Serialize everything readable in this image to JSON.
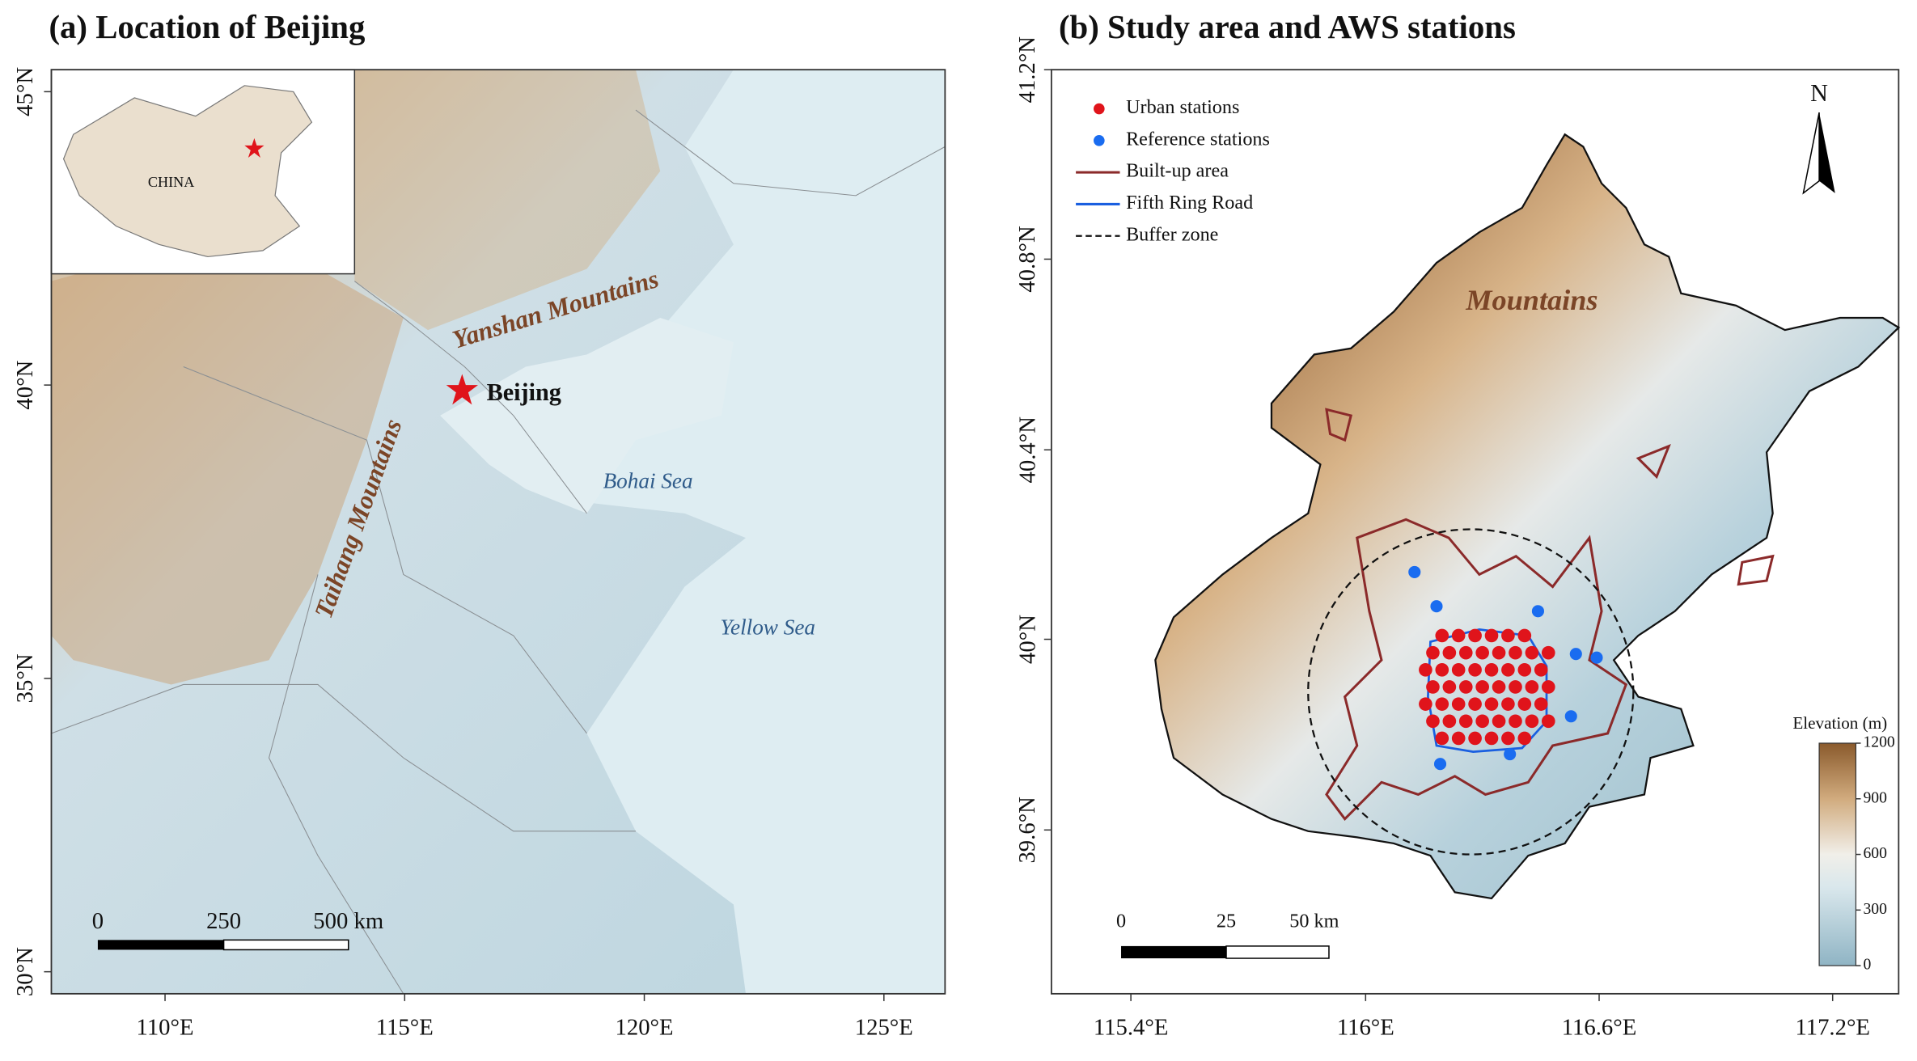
{
  "panel_a": {
    "title": "(a)  Location of Beijing",
    "y_ticks": [
      "45°N",
      "40°N",
      "35°N",
      "30°N"
    ],
    "x_ticks": [
      "110°E",
      "115°E",
      "120°E",
      "125°E"
    ],
    "inset_label": "CHINA",
    "labels": {
      "yanshan": "Yanshan Mountains",
      "taihang": "Taihang Mountains",
      "beijing": "Beijing",
      "bohai": "Bohai Sea",
      "yellow": "Yellow Sea"
    },
    "scale_bar": [
      "0",
      "250",
      "500 km"
    ]
  },
  "panel_b": {
    "title": "(b)  Study area and AWS stations",
    "y_ticks": [
      "41.2°N",
      "40.8°N",
      "40.4°N",
      "40°N",
      "39.6°N"
    ],
    "x_ticks": [
      "115.4°E",
      "116°E",
      "116.6°E",
      "117.2°E"
    ],
    "legend": [
      "Urban stations",
      "Reference stations",
      "Built-up area",
      "Fifth Ring Road",
      "Buffer zone"
    ],
    "north": "N",
    "mountains": "Mountains",
    "colorbar": {
      "title": "Elevation (m)",
      "ticks": [
        "1200",
        "900",
        "600",
        "300",
        "0"
      ]
    },
    "scale_bar": [
      "0",
      "25",
      "50 km"
    ]
  }
}
